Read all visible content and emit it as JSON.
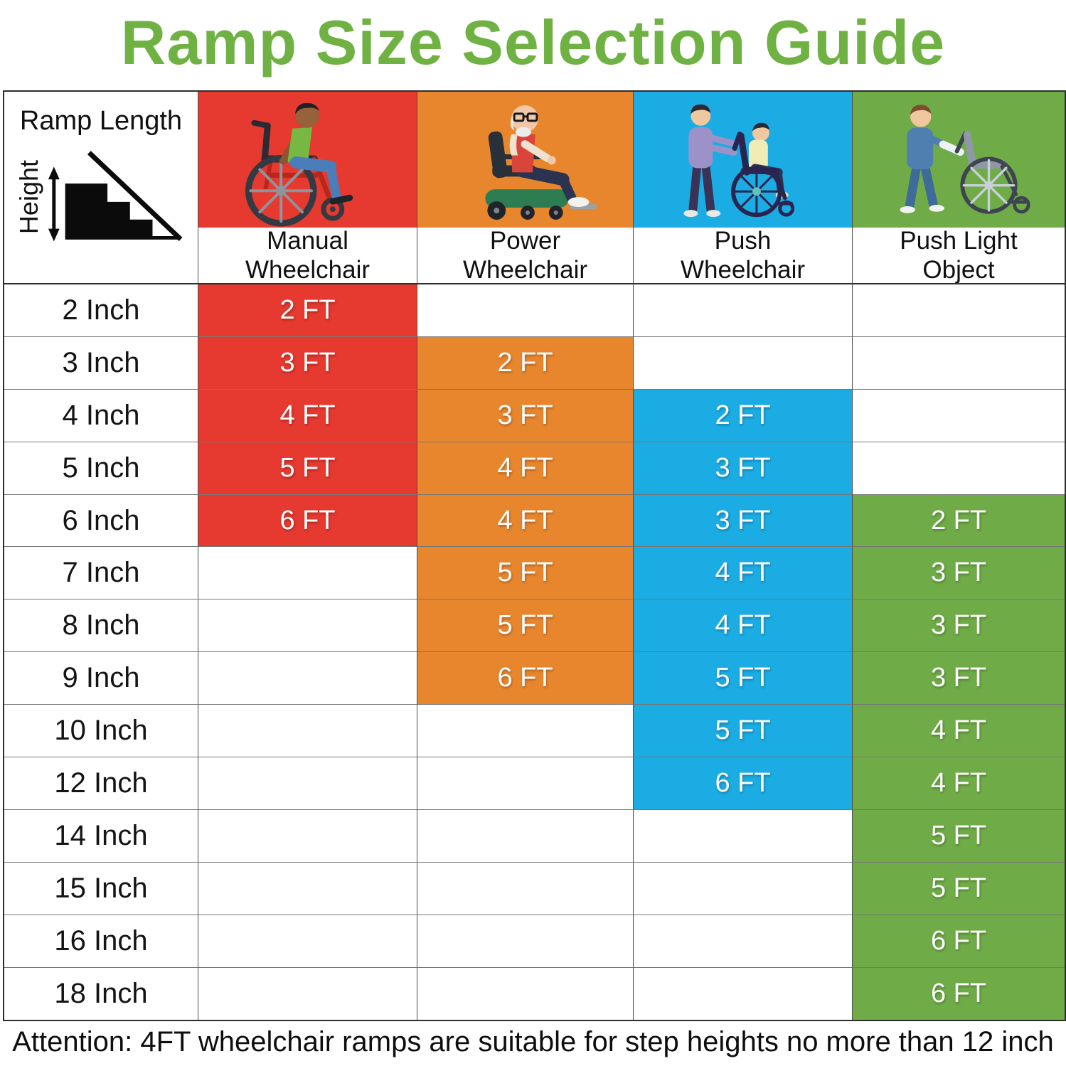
{
  "title": "Ramp Size Selection Guide",
  "footer_note": "Attention: 4FT wheelchair ramps are suitable for step heights no more than 12 inch",
  "corner": {
    "ramp_length_label": "Ramp Length",
    "height_label": "Height"
  },
  "columns": [
    {
      "id": "manual",
      "line1": "Manual",
      "line2": "Wheelchair",
      "color": "#E6392F"
    },
    {
      "id": "power",
      "line1": "Power",
      "line2": "Wheelchair",
      "color": "#E8862E"
    },
    {
      "id": "push",
      "line1": "Push",
      "line2": "Wheelchair",
      "color": "#1BACE4"
    },
    {
      "id": "light",
      "line1": "Push Light",
      "line2": "Object",
      "color": "#6FAC47"
    }
  ],
  "rows": [
    {
      "height": "2 Inch",
      "manual": "2 FT",
      "power": "",
      "push": "",
      "light": ""
    },
    {
      "height": "3 Inch",
      "manual": "3 FT",
      "power": "2 FT",
      "push": "",
      "light": ""
    },
    {
      "height": "4 Inch",
      "manual": "4 FT",
      "power": "3 FT",
      "push": "2 FT",
      "light": ""
    },
    {
      "height": "5 Inch",
      "manual": "5 FT",
      "power": "4 FT",
      "push": "3 FT",
      "light": ""
    },
    {
      "height": "6 Inch",
      "manual": "6 FT",
      "power": "4 FT",
      "push": "3 FT",
      "light": "2 FT"
    },
    {
      "height": "7 Inch",
      "manual": "",
      "power": "5 FT",
      "push": "4 FT",
      "light": "3 FT"
    },
    {
      "height": "8 Inch",
      "manual": "",
      "power": "5 FT",
      "push": "4 FT",
      "light": "3 FT"
    },
    {
      "height": "9 Inch",
      "manual": "",
      "power": "6 FT",
      "push": "5 FT",
      "light": "3 FT"
    },
    {
      "height": "10 Inch",
      "manual": "",
      "power": "",
      "push": "5 FT",
      "light": "4 FT"
    },
    {
      "height": "12 Inch",
      "manual": "",
      "power": "",
      "push": "6 FT",
      "light": "4 FT"
    },
    {
      "height": "14 Inch",
      "manual": "",
      "power": "",
      "push": "",
      "light": "5 FT"
    },
    {
      "height": "15 Inch",
      "manual": "",
      "power": "",
      "push": "",
      "light": "5 FT"
    },
    {
      "height": "16 Inch",
      "manual": "",
      "power": "",
      "push": "",
      "light": "6 FT"
    },
    {
      "height": "18 Inch",
      "manual": "",
      "power": "",
      "push": "",
      "light": "6 FT"
    }
  ],
  "theme": {
    "title_color": "#6FB243",
    "grid_color": "#4c4c4c",
    "manual_color": "#E6392F",
    "power_color": "#E8862E",
    "push_color": "#1BACE4",
    "light_color": "#6FAC47",
    "cell_text_color": "#FFFFFF"
  },
  "chart_data": {
    "type": "table",
    "title": "Ramp Size Selection Guide",
    "row_header": "Ramp Length / Height",
    "categories": [
      "2 Inch",
      "3 Inch",
      "4 Inch",
      "5 Inch",
      "6 Inch",
      "7 Inch",
      "8 Inch",
      "9 Inch",
      "10 Inch",
      "12 Inch",
      "14 Inch",
      "15 Inch",
      "16 Inch",
      "18 Inch"
    ],
    "series": [
      {
        "name": "Manual Wheelchair",
        "values": [
          "2 FT",
          "3 FT",
          "4 FT",
          "5 FT",
          "6 FT",
          "",
          "",
          "",
          "",
          "",
          "",
          "",
          "",
          ""
        ]
      },
      {
        "name": "Power Wheelchair",
        "values": [
          "",
          "2 FT",
          "3 FT",
          "4 FT",
          "4 FT",
          "5 FT",
          "5 FT",
          "6 FT",
          "",
          "",
          "",
          "",
          "",
          ""
        ]
      },
      {
        "name": "Push Wheelchair",
        "values": [
          "",
          "",
          "2 FT",
          "3 FT",
          "3 FT",
          "4 FT",
          "4 FT",
          "5 FT",
          "5 FT",
          "6 FT",
          "",
          "",
          "",
          ""
        ]
      },
      {
        "name": "Push Light Object",
        "values": [
          "",
          "",
          "",
          "",
          "2 FT",
          "3 FT",
          "3 FT",
          "3 FT",
          "4 FT",
          "4 FT",
          "5 FT",
          "5 FT",
          "6 FT",
          "6 FT"
        ]
      }
    ],
    "note": "Attention: 4FT wheelchair ramps are suitable for step heights no more than 12 inch"
  }
}
